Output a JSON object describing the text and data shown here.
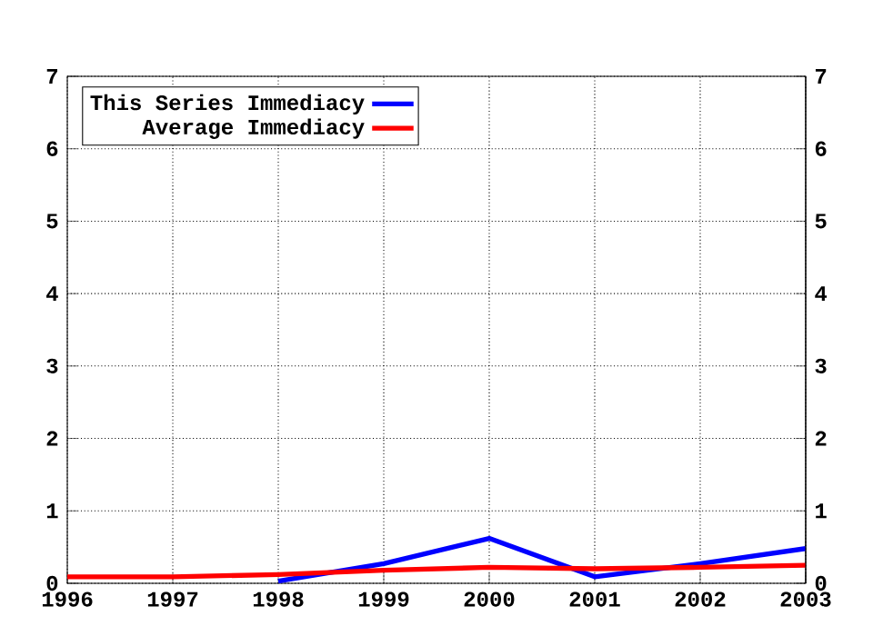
{
  "chart_data": {
    "type": "line",
    "x": [
      1996,
      1997,
      1998,
      1999,
      2000,
      2001,
      2002,
      2003
    ],
    "series": [
      {
        "name": "This Series Immediacy",
        "color": "#0000ff",
        "values": [
          null,
          null,
          0.03,
          0.27,
          0.62,
          0.09,
          0.27,
          0.48
        ]
      },
      {
        "name": "Average Immediacy",
        "color": "#ff0000",
        "values": [
          0.09,
          0.09,
          0.12,
          0.18,
          0.22,
          0.2,
          0.22,
          0.25
        ]
      }
    ],
    "xlim": [
      1996,
      2003
    ],
    "xticks": [
      1996,
      1997,
      1998,
      1999,
      2000,
      2001,
      2002,
      2003
    ],
    "ylim": [
      0,
      7
    ],
    "yticks": [
      0,
      1,
      2,
      3,
      4,
      5,
      6,
      7
    ],
    "y2lim": [
      0,
      7
    ],
    "y2ticks": [
      0,
      1,
      2,
      3,
      4,
      5,
      6,
      7
    ],
    "grid": true,
    "legend": "top left",
    "line_style": "solid",
    "marker": "none"
  }
}
